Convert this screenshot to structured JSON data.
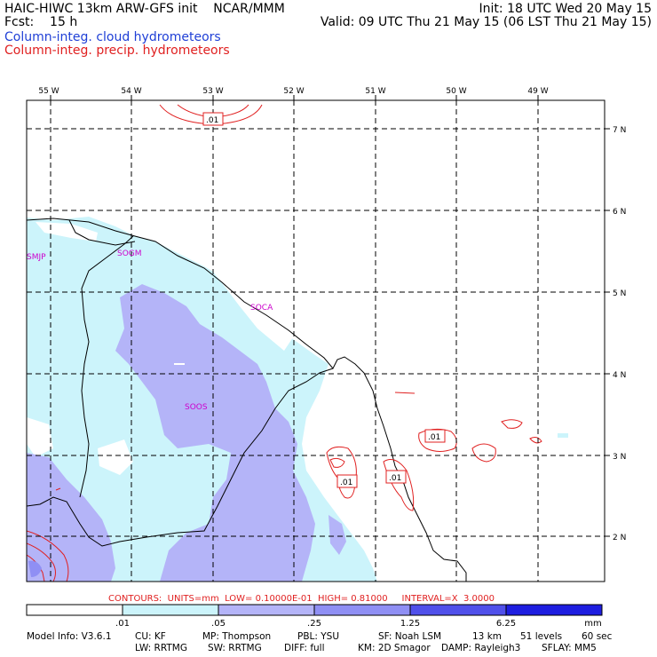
{
  "header": {
    "line1_left": "HAIC-HIWC 13km ARW-GFS init    NCAR/MMM",
    "line1_right": "Init: 18 UTC Wed 20 May 15",
    "line2_left": "Fcst:    15 h",
    "line2_right": "Valid: 09 UTC Thu 21 May 15 (06 LST Thu 21 May 15)",
    "legend_cloud": "Column-integ. cloud hydrometeors",
    "legend_precip": "Column-integ. precip. hydrometeors",
    "cloud_color": "#1f3fd6",
    "precip_color": "#e02020"
  },
  "axes": {
    "lon_labels": [
      "55 W",
      "54 W",
      "53 W",
      "52 W",
      "51 W",
      "50 W",
      "49 W"
    ],
    "lat_labels": [
      "7 N",
      "6 N",
      "5 N",
      "4 N",
      "3 N",
      "2 N"
    ]
  },
  "stations": [
    "SMJP",
    "SOGM",
    "SOCA",
    "SOOS"
  ],
  "contour_labels": [
    ".01",
    ".01",
    ".01",
    ".01"
  ],
  "contours_info": "CONTOURS:  UNITS=mm  LOW= 0.10000E-01  HIGH= 0.81000     INTERVAL=X  3.0000",
  "colorbar": {
    "ticks": [
      ".01",
      ".05",
      ".25",
      "1.25",
      "6.25"
    ],
    "units": "mm",
    "colors": [
      "#ffffff",
      "#ccf4fb",
      "#b4b4f8",
      "#8f8ff4",
      "#5050ea",
      "#1e1ee0"
    ]
  },
  "footer": {
    "line1": [
      "Model Info: V3.6.1",
      "CU: KF",
      "MP: Thompson",
      "PBL: YSU",
      "SF: Noah LSM",
      "13 km",
      "51 levels",
      "60 sec"
    ],
    "line2": [
      "LW: RRTMG",
      "SW: RRTMG",
      "DIFF: full",
      "KM: 2D Smagor",
      "DAMP: Rayleigh3",
      "SFLAY: MM5"
    ]
  }
}
